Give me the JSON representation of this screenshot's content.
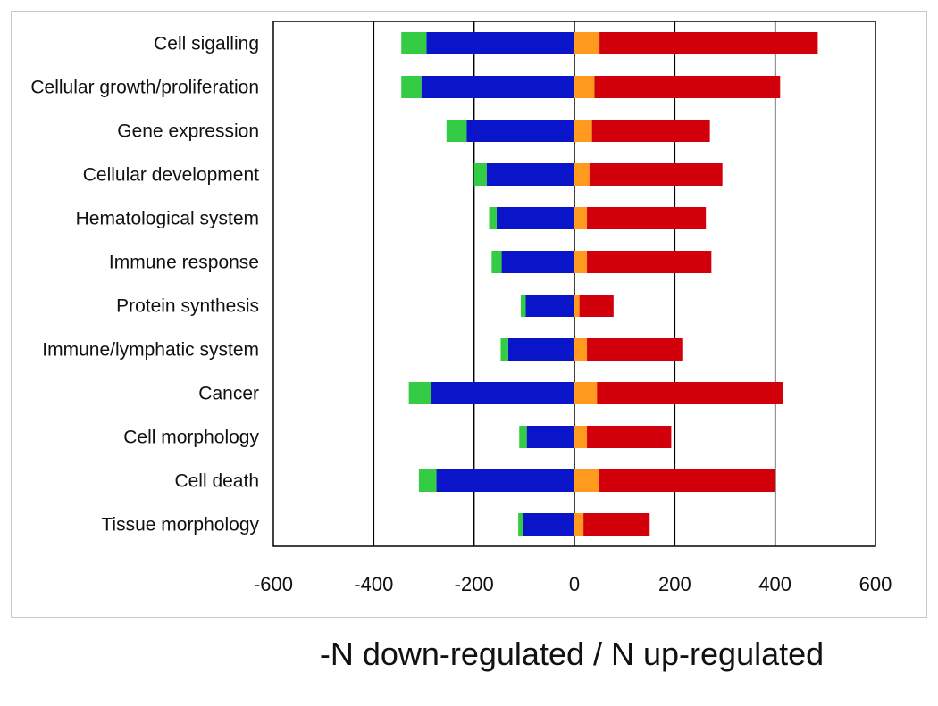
{
  "chart_data": {
    "type": "bar",
    "orientation": "horizontal",
    "stacked": true,
    "categories": [
      "Cell sigalling",
      "Cellular growth/proliferation",
      "Gene expression",
      "Cellular development",
      "Hematological system",
      "Immune response",
      "Protein synthesis",
      "Immune/lymphatic system",
      "Cancer",
      "Cell morphology",
      "Cell death",
      "Tissue morphology"
    ],
    "series": [
      {
        "color": "#0a14c8",
        "values": [
          -295,
          -305,
          -215,
          -175,
          -155,
          -145,
          -97,
          -132,
          -285,
          -95,
          -275,
          -102
        ]
      },
      {
        "color": "#33cc44",
        "values": [
          -50,
          -40,
          -40,
          -25,
          -15,
          -20,
          -10,
          -15,
          -45,
          -15,
          -35,
          -10
        ]
      },
      {
        "color": "#ff9a1e",
        "values": [
          50,
          40,
          35,
          30,
          25,
          25,
          10,
          25,
          45,
          25,
          48,
          18
        ]
      },
      {
        "color": "#d2000a",
        "values": [
          435,
          370,
          235,
          265,
          237,
          248,
          68,
          190,
          370,
          168,
          352,
          132
        ]
      }
    ],
    "title": "",
    "xlabel": "-N down-regulated / N up-regulated",
    "ylabel": "",
    "xlim": [
      -600,
      600
    ],
    "xticks": [
      "-600",
      "-400",
      "-200",
      "0",
      "200",
      "400",
      "600"
    ],
    "xtick_values": [
      -600,
      -400,
      -200,
      0,
      200,
      400,
      600
    ],
    "vertical_gridlines": [
      -400,
      -200,
      0,
      200,
      400
    ],
    "legend": "none"
  }
}
